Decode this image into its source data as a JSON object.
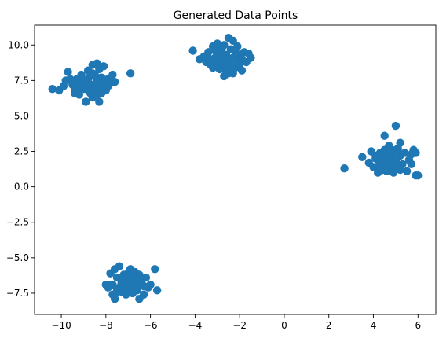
{
  "chart_data": {
    "type": "scatter",
    "title": "Generated Data Points",
    "xlabel": "",
    "ylabel": "",
    "xlim": [
      -11.2,
      6.8
    ],
    "ylim": [
      -9.0,
      11.4
    ],
    "x_ticks": [
      -10,
      -8,
      -6,
      -4,
      -2,
      0,
      2,
      4,
      6
    ],
    "y_ticks": [
      -7.5,
      -5.0,
      -2.5,
      0.0,
      2.5,
      5.0,
      7.5,
      10.0
    ],
    "x_tick_labels": [
      "−10",
      "−8",
      "−6",
      "−4",
      "−2",
      "0",
      "2",
      "4",
      "6"
    ],
    "y_tick_labels": [
      "−7.5",
      "−5.0",
      "−2.5",
      "0.0",
      "2.5",
      "5.0",
      "7.5",
      "10.0"
    ],
    "grid": false,
    "marker_color": "#1f77b4",
    "series": [
      {
        "x": [
          -10.4,
          -10.1,
          -9.9,
          -9.8,
          -9.7,
          -9.5,
          -9.4,
          -9.3,
          -9.2,
          -9.1,
          -9.0,
          -9.0,
          -8.9,
          -8.9,
          -8.8,
          -8.8,
          -8.7,
          -8.7,
          -8.6,
          -8.6,
          -8.6,
          -8.5,
          -8.5,
          -8.4,
          -8.4,
          -8.4,
          -8.3,
          -8.3,
          -8.3,
          -8.2,
          -8.2,
          -8.2,
          -8.1,
          -8.1,
          -8.0,
          -8.0,
          -7.9,
          -7.9,
          -7.8,
          -7.7,
          -7.6,
          -9.6,
          -9.3,
          -8.9,
          -8.6,
          -8.4,
          -7.9,
          -8.2,
          -9.1,
          -8.7,
          -6.9,
          -9.2,
          -8.8,
          -9.4,
          -8.5
        ],
        "y": [
          6.9,
          6.8,
          7.1,
          7.5,
          8.1,
          7.2,
          6.8,
          7.6,
          6.5,
          7.9,
          7.3,
          6.9,
          7.5,
          6.0,
          8.2,
          7.1,
          6.6,
          7.8,
          8.6,
          7.2,
          6.3,
          7.9,
          6.8,
          8.7,
          7.4,
          6.5,
          8.3,
          7.0,
          6.0,
          7.7,
          7.2,
          6.6,
          8.5,
          7.3,
          7.0,
          6.8,
          7.6,
          7.2,
          7.3,
          7.9,
          7.4,
          7.6,
          7.3,
          6.9,
          8.0,
          7.7,
          7.1,
          6.9,
          7.4,
          6.7,
          8.0,
          7.0,
          7.6,
          6.6,
          7.8
        ]
      },
      {
        "x": [
          -4.1,
          -3.8,
          -3.6,
          -3.5,
          -3.4,
          -3.3,
          -3.2,
          -3.2,
          -3.1,
          -3.0,
          -3.0,
          -2.9,
          -2.9,
          -2.8,
          -2.8,
          -2.7,
          -2.7,
          -2.6,
          -2.6,
          -2.5,
          -2.5,
          -2.5,
          -2.4,
          -2.4,
          -2.3,
          -2.3,
          -2.2,
          -2.2,
          -2.1,
          -2.1,
          -2.0,
          -2.0,
          -1.9,
          -1.9,
          -1.8,
          -1.7,
          -1.6,
          -1.5,
          -2.8,
          -2.6,
          -3.3,
          -2.2,
          -2.9,
          -2.4,
          -3.1,
          -2.7,
          -2.3,
          -2.5,
          -3.0,
          -2.8
        ],
        "y": [
          9.6,
          9.0,
          9.2,
          8.8,
          9.5,
          8.6,
          9.9,
          8.4,
          9.1,
          10.1,
          8.7,
          9.4,
          8.3,
          9.8,
          8.9,
          10.0,
          8.5,
          9.3,
          8.2,
          10.5,
          9.0,
          8.0,
          9.7,
          8.6,
          10.3,
          9.1,
          9.6,
          8.4,
          9.9,
          8.9,
          9.3,
          8.6,
          9.0,
          8.2,
          9.5,
          8.8,
          9.4,
          9.1,
          9.5,
          8.8,
          9.0,
          9.2,
          9.7,
          8.3,
          9.6,
          7.8,
          8.0,
          8.9,
          8.5,
          9.2
        ]
      },
      {
        "x": [
          2.7,
          3.5,
          3.8,
          3.9,
          4.0,
          4.1,
          4.2,
          4.2,
          4.3,
          4.3,
          4.4,
          4.4,
          4.5,
          4.5,
          4.6,
          4.6,
          4.7,
          4.7,
          4.8,
          4.8,
          4.9,
          4.9,
          5.0,
          5.0,
          5.1,
          5.1,
          5.2,
          5.2,
          5.3,
          5.4,
          5.5,
          5.6,
          5.7,
          5.8,
          5.9,
          6.0,
          4.5,
          4.7,
          4.9,
          5.0,
          4.4,
          4.6,
          4.8,
          5.2,
          5.0,
          4.1,
          4.3,
          5.7,
          5.9,
          4.6
        ],
        "y": [
          1.3,
          2.1,
          1.7,
          2.5,
          1.4,
          2.2,
          1.9,
          1.0,
          2.4,
          1.6,
          2.0,
          1.2,
          2.6,
          1.5,
          2.3,
          1.1,
          2.8,
          1.7,
          2.1,
          1.3,
          2.5,
          1.0,
          4.3,
          1.8,
          2.7,
          1.4,
          2.2,
          3.1,
          1.6,
          2.4,
          1.1,
          1.9,
          2.3,
          2.6,
          0.8,
          0.8,
          3.6,
          2.9,
          1.6,
          2.0,
          1.8,
          2.2,
          1.5,
          1.2,
          2.6,
          2.0,
          1.3,
          1.6,
          2.4,
          1.9
        ]
      },
      {
        "x": [
          -8.0,
          -7.9,
          -7.8,
          -7.7,
          -7.6,
          -7.6,
          -7.5,
          -7.5,
          -7.4,
          -7.3,
          -7.3,
          -7.2,
          -7.2,
          -7.1,
          -7.1,
          -7.0,
          -7.0,
          -6.9,
          -6.9,
          -6.8,
          -6.8,
          -6.7,
          -6.7,
          -6.6,
          -6.6,
          -6.5,
          -6.5,
          -6.4,
          -6.3,
          -6.2,
          -6.1,
          -6.0,
          -5.8,
          -5.7,
          -7.7,
          -7.4,
          -7.0,
          -6.8,
          -6.9,
          -7.2,
          -6.5,
          -6.3,
          -7.5,
          -7.8,
          -6.6,
          -7.0
        ],
        "y": [
          -6.9,
          -7.1,
          -6.1,
          -7.6,
          -5.8,
          -7.9,
          -6.4,
          -7.2,
          -5.6,
          -6.8,
          -7.4,
          -6.2,
          -7.0,
          -6.5,
          -7.6,
          -6.1,
          -7.2,
          -5.8,
          -6.9,
          -7.5,
          -6.3,
          -7.0,
          -6.0,
          -6.6,
          -7.3,
          -6.2,
          -7.9,
          -6.8,
          -7.6,
          -6.4,
          -7.1,
          -6.9,
          -5.8,
          -7.3,
          -6.9,
          -7.1,
          -6.7,
          -7.1,
          -6.5,
          -6.6,
          -6.5,
          -7.0,
          -7.4,
          -6.9,
          -7.2,
          -6.3
        ]
      }
    ]
  }
}
